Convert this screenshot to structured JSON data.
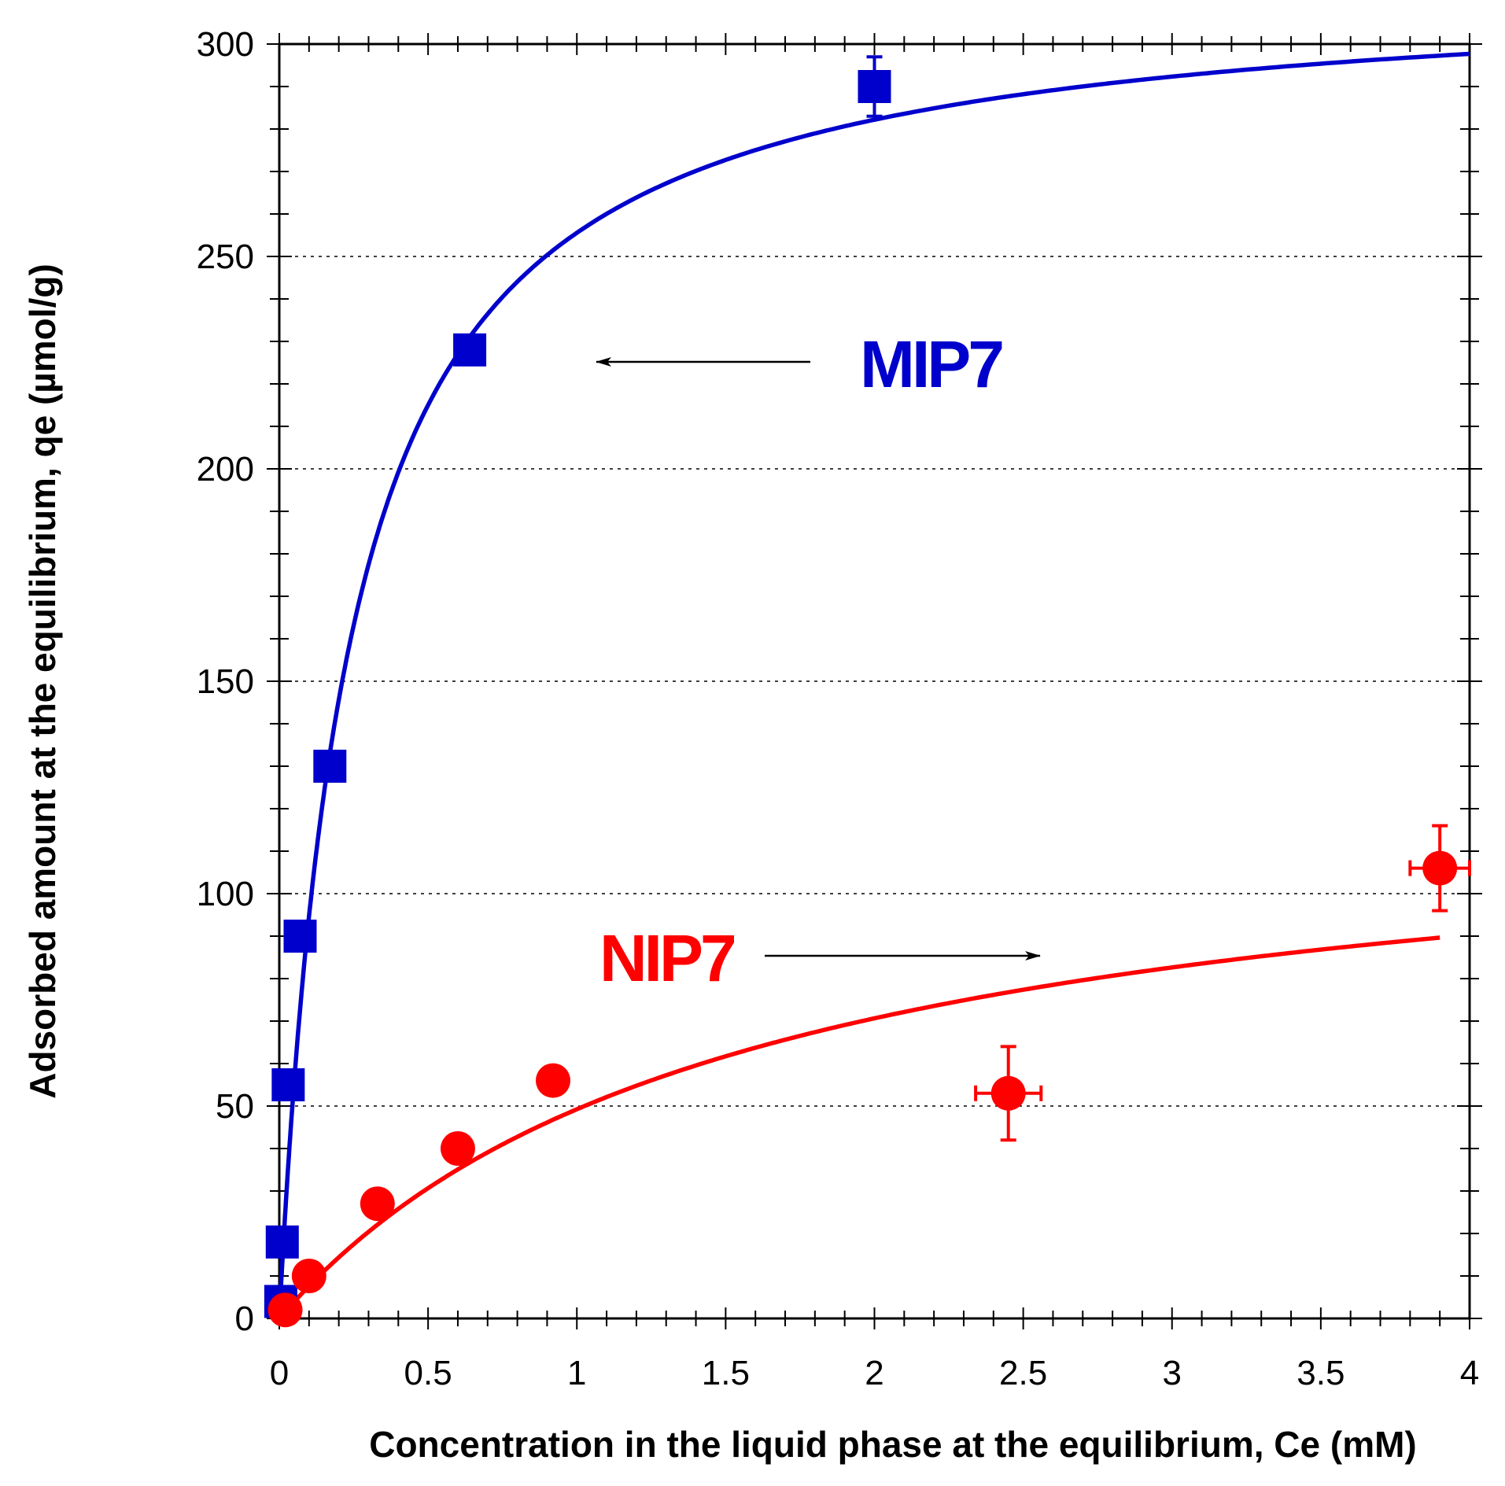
{
  "chart_data": {
    "type": "scatter",
    "title": "",
    "xlabel": "Concentration in the liquid phase at the equilibrium, Ce (mM)",
    "ylabel": "Adsorbed amount at the equilibrium, qe (µmol/g)",
    "xlim": [
      0,
      4
    ],
    "ylim": [
      0,
      300
    ],
    "x_ticks": [
      0,
      0.5,
      1,
      1.5,
      2,
      2.5,
      3,
      3.5,
      4
    ],
    "x_tick_labels": [
      "0",
      "0.5",
      "1",
      "1.5",
      "2",
      "2.5",
      "3",
      "3.5",
      "4"
    ],
    "y_ticks": [
      0,
      50,
      100,
      150,
      200,
      250,
      300
    ],
    "y_tick_labels": [
      "0",
      "50",
      "100",
      "150",
      "200",
      "250",
      "300"
    ],
    "grid": "horizontal dotted at major y ticks",
    "series": [
      {
        "name": "MIP7",
        "color": "#0000cc",
        "marker": "square",
        "points": [
          {
            "x": 0.005,
            "y": 4,
            "yerr": 0,
            "xerr": 0
          },
          {
            "x": 0.01,
            "y": 18,
            "yerr": 0,
            "xerr": 0
          },
          {
            "x": 0.03,
            "y": 55,
            "yerr": 0,
            "xerr": 0
          },
          {
            "x": 0.07,
            "y": 90,
            "yerr": 0,
            "xerr": 0
          },
          {
            "x": 0.17,
            "y": 130,
            "yerr": 0,
            "xerr": 0
          },
          {
            "x": 0.64,
            "y": 228,
            "yerr": 0,
            "xerr": 0
          },
          {
            "x": 2.0,
            "y": 290,
            "yerr": 7,
            "xerr": 0
          }
        ],
        "fit": {
          "model": "Langmuir",
          "qmax": 315,
          "K": 4.3,
          "x_range": [
            0,
            4
          ]
        }
      },
      {
        "name": "NIP7",
        "color": "#ff0000",
        "marker": "circle",
        "points": [
          {
            "x": 0.02,
            "y": 2,
            "yerr": 0,
            "xerr": 0
          },
          {
            "x": 0.1,
            "y": 10,
            "yerr": 0,
            "xerr": 0
          },
          {
            "x": 0.33,
            "y": 27,
            "yerr": 0,
            "xerr": 0
          },
          {
            "x": 0.6,
            "y": 40,
            "yerr": 0,
            "xerr": 0
          },
          {
            "x": 0.92,
            "y": 56,
            "yerr": 3,
            "xerr": 0
          },
          {
            "x": 2.45,
            "y": 53,
            "yerr": 11,
            "xerr": 0.11
          },
          {
            "x": 3.9,
            "y": 106,
            "yerr": 10,
            "xerr": 0.1
          }
        ],
        "fit": {
          "model": "Langmuir",
          "qmax": 125,
          "K": 0.65,
          "x_range": [
            0.02,
            3.9
          ]
        }
      }
    ],
    "annotations": [
      {
        "text": "MIP7",
        "color": "#0000cc",
        "arrow_direction": "left"
      },
      {
        "text": "NIP7",
        "color": "#ff0000",
        "arrow_direction": "right"
      }
    ]
  }
}
